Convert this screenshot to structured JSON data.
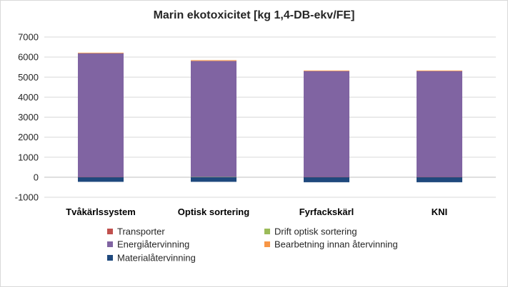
{
  "chart_data": {
    "type": "bar",
    "stacked": true,
    "title": "Marin ekotoxicitet [kg 1,4-DB-ekv/FE]",
    "xlabel": "",
    "ylabel": "",
    "ylim": [
      -1000,
      7000
    ],
    "yticks": [
      -1000,
      0,
      1000,
      2000,
      3000,
      4000,
      5000,
      6000,
      7000
    ],
    "categories": [
      "Tvåkärlssystem",
      "Optisk sortering",
      "Fyrfackskärl",
      "KNI"
    ],
    "series": [
      {
        "name": "Transporter",
        "color": "#c0504d",
        "values": [
          10,
          10,
          10,
          10
        ]
      },
      {
        "name": "Drift optisk sortering",
        "color": "#9bbb59",
        "values": [
          0,
          5,
          0,
          0
        ]
      },
      {
        "name": "Energiåtervinning",
        "color": "#8064a2",
        "values": [
          6180,
          5790,
          5290,
          5290
        ]
      },
      {
        "name": "Bearbetning innan återvinning",
        "color": "#f79646",
        "values": [
          30,
          40,
          30,
          30
        ]
      },
      {
        "name": "Materialåtervinning",
        "color": "#1f497d",
        "values": [
          -230,
          -230,
          -250,
          -250
        ]
      }
    ],
    "grid": true,
    "legend": "bottom"
  }
}
